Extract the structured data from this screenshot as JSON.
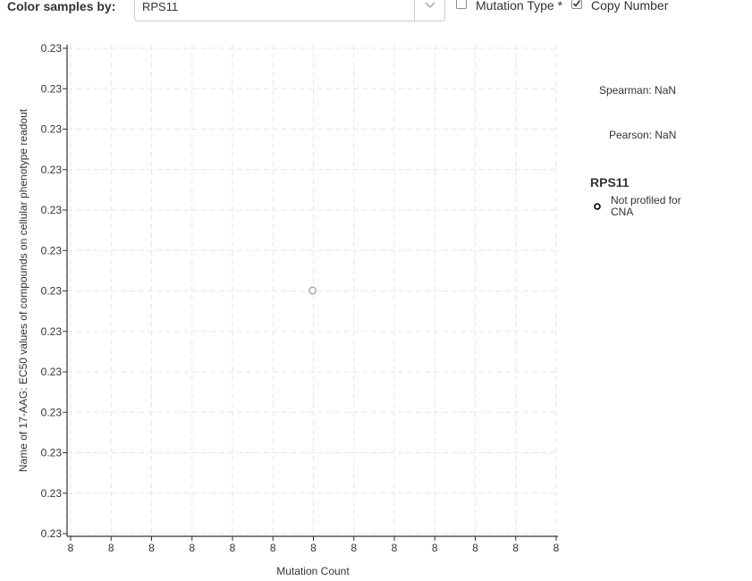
{
  "toolbar": {
    "color_label": "Color samples by:",
    "select_value": "RPS11",
    "mutation_type_label": "Mutation Type *",
    "mutation_type_checked": false,
    "copy_number_label": "Copy Number",
    "copy_number_checked": true
  },
  "stats": {
    "spearman": "Spearman: NaN",
    "pearson": "Pearson: NaN"
  },
  "legend": {
    "title": "RPS11",
    "items": [
      {
        "label": "Not profiled for CNA",
        "marker": "open-circle",
        "color": "#000000"
      }
    ]
  },
  "chart_data": {
    "type": "scatter",
    "xlabel": "Mutation Count",
    "ylabel": "Name of 17-AAG: EC50 values of compounds on cellular phenotype readout",
    "x_tick_labels": [
      "8",
      "8",
      "8",
      "8",
      "8",
      "8",
      "8",
      "8",
      "8",
      "8",
      "8",
      "8",
      "8"
    ],
    "y_tick_labels": [
      "0.23",
      "0.23",
      "0.23",
      "0.23",
      "0.23",
      "0.23",
      "0.23",
      "0.23",
      "0.23",
      "0.23",
      "0.23",
      "0.23",
      "0.23"
    ],
    "grid": true,
    "points": [
      {
        "x": 8,
        "y": 0.23,
        "color": "#aaaaaa"
      }
    ]
  }
}
